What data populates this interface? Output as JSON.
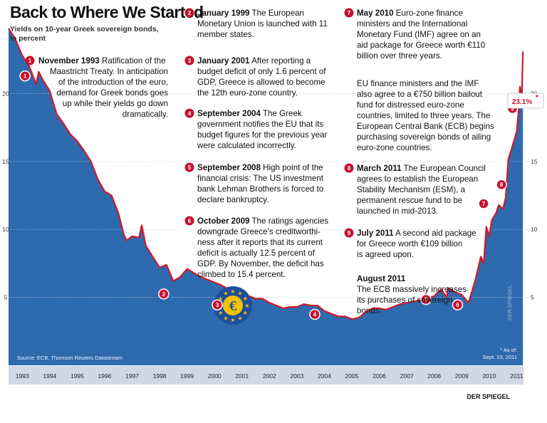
{
  "chart_data": {
    "type": "area",
    "title": "Back to Where We Started",
    "subtitle_lines": [
      "Yields on 10-year Greek sovereign bonds,",
      "in percent"
    ],
    "x_range": [
      1993,
      2011.75
    ],
    "ylim": [
      0,
      25
    ],
    "y_ticks": [
      5,
      10,
      15,
      20
    ],
    "year_labels": [
      "1993",
      "1994",
      "1995",
      "1996",
      "1997",
      "1998",
      "1999",
      "2000",
      "2001",
      "2002",
      "2003",
      "2004",
      "2005",
      "2006",
      "2007",
      "2008",
      "2009",
      "2010",
      "2011"
    ],
    "series": [
      {
        "name": "Greek 10-year bond yield",
        "x": [
          1993.0,
          1993.25,
          1993.5,
          1993.75,
          1993.85,
          1994.0,
          1994.1,
          1994.25,
          1994.5,
          1994.75,
          1995.0,
          1995.25,
          1995.5,
          1995.75,
          1996.0,
          1996.25,
          1996.5,
          1996.75,
          1997.0,
          1997.2,
          1997.3,
          1997.5,
          1997.75,
          1997.85,
          1998.0,
          1998.25,
          1998.5,
          1998.75,
          1999.0,
          1999.25,
          1999.5,
          1999.75,
          2000.0,
          2000.25,
          2000.5,
          2000.75,
          2001.0,
          2001.25,
          2001.5,
          2001.75,
          2002.0,
          2002.25,
          2002.5,
          2002.75,
          2003.0,
          2003.25,
          2003.5,
          2003.75,
          2004.0,
          2004.25,
          2004.5,
          2004.75,
          2005.0,
          2005.25,
          2005.5,
          2005.75,
          2006.0,
          2006.25,
          2006.5,
          2006.75,
          2007.0,
          2007.25,
          2007.5,
          2007.75,
          2008.0,
          2008.25,
          2008.5,
          2008.75,
          2008.95,
          2009.0,
          2009.25,
          2009.5,
          2009.75,
          2010.0,
          2010.2,
          2010.3,
          2010.4,
          2010.5,
          2010.6,
          2010.75,
          2010.85,
          2011.0,
          2011.1,
          2011.2,
          2011.3,
          2011.4,
          2011.5,
          2011.55,
          2011.62,
          2011.68,
          2011.73
        ],
        "values": [
          24.8,
          24.0,
          22.8,
          22.0,
          21.5,
          20.7,
          21.6,
          21.0,
          20.2,
          18.5,
          17.8,
          17.0,
          16.5,
          15.8,
          15.0,
          13.7,
          12.8,
          12.5,
          11.2,
          9.6,
          9.2,
          9.5,
          9.4,
          10.3,
          8.8,
          8.0,
          7.2,
          7.4,
          6.2,
          6.5,
          7.1,
          6.8,
          6.5,
          6.3,
          6.1,
          5.9,
          5.6,
          5.5,
          5.3,
          5.1,
          4.9,
          4.9,
          4.6,
          4.4,
          4.2,
          4.3,
          4.3,
          4.5,
          4.4,
          4.4,
          4.0,
          3.8,
          3.6,
          3.6,
          3.4,
          3.5,
          3.9,
          4.2,
          4.2,
          4.1,
          4.3,
          4.5,
          4.6,
          4.7,
          4.8,
          4.9,
          5.1,
          5.6,
          5.0,
          5.7,
          5.4,
          5.2,
          4.6,
          6.3,
          8.0,
          7.5,
          10.2,
          9.5,
          10.7,
          11.2,
          11.8,
          11.5,
          12.3,
          15.2,
          15.8,
          16.5,
          17.2,
          18.2,
          20.5,
          19.5,
          23.1
        ]
      }
    ],
    "peak_label": "23.1%",
    "peak_footnote": "*",
    "asof_lines": [
      "* As of:",
      "Sept. 23, 2011"
    ],
    "source": "Source: ECB, Thomson Reuters Datastream",
    "credit": "DER SPIEGEL",
    "markers": [
      {
        "num": "1",
        "x": 1993.6,
        "y": 21.3
      },
      {
        "num": "2",
        "x": 1998.65,
        "y": 5.25
      },
      {
        "num": "3",
        "x": 2000.6,
        "y": 4.45
      },
      {
        "num": "4",
        "x": 2004.15,
        "y": 3.75
      },
      {
        "num": "5",
        "x": 2008.2,
        "y": 4.85
      },
      {
        "num": "6",
        "x": 2009.35,
        "y": 4.45
      },
      {
        "num": "7",
        "x": 2010.3,
        "y": 11.9
      },
      {
        "num": "8",
        "x": 2010.95,
        "y": 13.3
      },
      {
        "num": "9",
        "x": 2011.35,
        "y": 18.9
      }
    ]
  },
  "euro_symbol": "€",
  "watermark": "DER SPIEGEL",
  "annotations": {
    "a1": {
      "num": "1",
      "head": "November 1993",
      "lines": [
        "Ratification of the",
        "Maastricht Treaty. In anticipation",
        "of the introduction of the euro,",
        "demand for Greek bonds goes",
        "up while their yields go down",
        "dramatically."
      ]
    },
    "a2": {
      "num": "2",
      "head": "January 1999",
      "lines": [
        "The European",
        "Monetary Union is launched with 11",
        "member states."
      ]
    },
    "a3": {
      "num": "3",
      "head": "January 2001",
      "lines": [
        "After reporting a",
        "budget deficit of only 1.6 percent of",
        "GDP, Greece is allowed to become",
        "the 12th euro-zone country."
      ]
    },
    "a4": {
      "num": "4",
      "head": "September 2004",
      "lines": [
        "The Greek",
        "government notifies the EU that its",
        "budget figures for the previous year",
        "were calculated incorrectly."
      ]
    },
    "a5": {
      "num": "5",
      "head": "September 2008",
      "lines": [
        "High point of the",
        "financial crisis: The US investment",
        "bank Lehman Brothers is forced to",
        "declare bankruptcy."
      ]
    },
    "a6": {
      "num": "6",
      "head": "October 2009",
      "lines": [
        "The ratings agencies",
        "downgrade Greece's creditworthi-",
        "ness after it reports that its current",
        "deficit is actually 12.5 percent of",
        "GDP. By November, the deficit has",
        "climbed to 15.4 percent."
      ]
    },
    "a7": {
      "num": "7",
      "head": "May 2010",
      "lines": [
        "Euro-zone finance",
        "ministers and the International",
        "Monetary Fund (IMF) agree on an",
        "aid package for Greece worth €110",
        "billion over three years."
      ]
    },
    "a7b": {
      "lines": [
        "EU finance ministers and the IMF",
        "also agree to a €750 billion bailout",
        "fund for distressed euro-zone",
        "countries, limited to three years. The",
        "European Central Bank (ECB) begins",
        "purchasing sovereign bonds of ailing",
        "euro-zone countries."
      ]
    },
    "a8": {
      "num": "8",
      "head": "March 2011",
      "lines": [
        "The European Council",
        "agrees to establish the European",
        "Stability Mechanism (ESM), a",
        "permanent rescue fund to be",
        "launched in mid-2013."
      ]
    },
    "a9": {
      "num": "9",
      "head": "July 2011",
      "lines": [
        "A second aid package",
        "for Greece worth €109 billion",
        "is agreed upon."
      ]
    },
    "a10": {
      "head": "August 2011",
      "lines": [
        "The ECB massively increases",
        "its purchases of sovereign",
        "bonds."
      ]
    }
  },
  "colors": {
    "area": "#2e6aae",
    "line": "#d01a2a",
    "badge": "#c8102e",
    "grid": "#b9c8dc",
    "axis_band": "#cfd9e6",
    "euro_disc": "#1f4f9c",
    "euro_coin": "#f2c200"
  }
}
